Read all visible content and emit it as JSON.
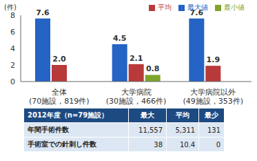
{
  "chart_data": {
    "type": "bar",
    "ylabel": "(件)",
    "categories": [
      "全体\n(70施設，819件)",
      "大学病院\n(30施設，466件)",
      "大学病院以外\n(49施設，353件)"
    ],
    "series": [
      {
        "name": "最大値",
        "color": "#2563c4",
        "values": [
          7.6,
          4.5,
          7.6
        ]
      },
      {
        "name": "平均",
        "color": "#b83a3a",
        "values": [
          2.0,
          2.1,
          1.9
        ],
        "value_labels": [
          "2.0",
          "2.1",
          "1.9"
        ]
      },
      {
        "name": "最小値",
        "color": "#7da52c",
        "values": [
          0,
          0.8,
          0
        ]
      }
    ],
    "ylim": [
      0,
      8
    ],
    "yticks": [
      0,
      2,
      4,
      6,
      8
    ],
    "grid": false,
    "legend": "top",
    "data_labels": true
  },
  "table": {
    "header": [
      "2012年度（n=79施設）",
      "最大",
      "平均",
      "最少"
    ],
    "rows": [
      [
        "年間手術件数",
        "11,557",
        "5,311",
        "131"
      ],
      [
        "手術室での針刺し件数",
        "38",
        "10.4",
        "0"
      ]
    ]
  }
}
